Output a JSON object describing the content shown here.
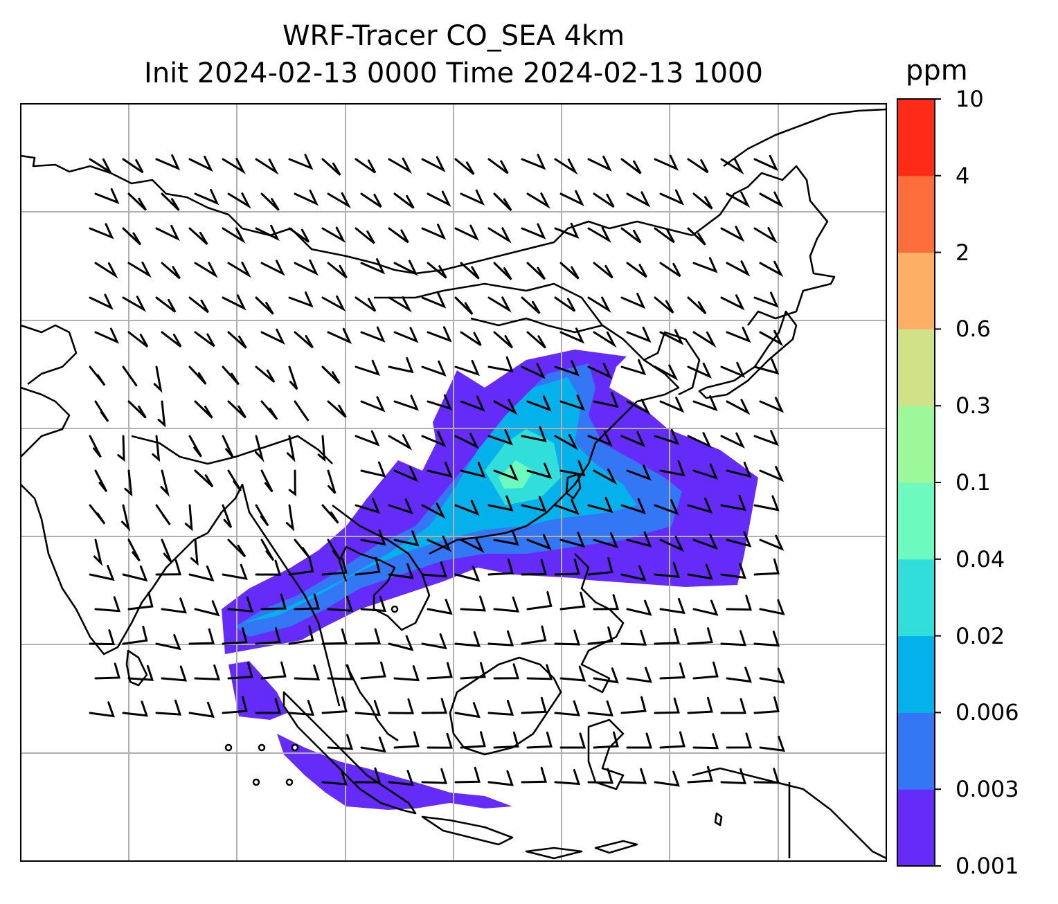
{
  "title_line1": "WRF-Tracer CO_SEA 4km",
  "title_line2": "Init 2024-02-13 0000 Time 2024-02-13 1000",
  "colorbar": {
    "unit": "ppm",
    "levels": [
      "0.001",
      "0.003",
      "0.006",
      "0.02",
      "0.04",
      "0.1",
      "0.3",
      "0.6",
      "2",
      "4",
      "10"
    ],
    "colors": [
      "#652bf8",
      "#3377f5",
      "#04b1ea",
      "#31deda",
      "#6cfabf",
      "#9cf898",
      "#d0e188",
      "#fdaf65",
      "#fe6e3d",
      "#ff2b18"
    ]
  },
  "map": {
    "gridlines": true,
    "coastlines": true,
    "wind_barbs": true,
    "field_colors": {
      "lowest": "#652bf8",
      "low": "#3377f5",
      "mid": "#04b1ea",
      "high": "#31deda",
      "higher": "#6cfabf"
    },
    "coastline_color": "#000000",
    "grid_color": "#b0b0b0"
  }
}
